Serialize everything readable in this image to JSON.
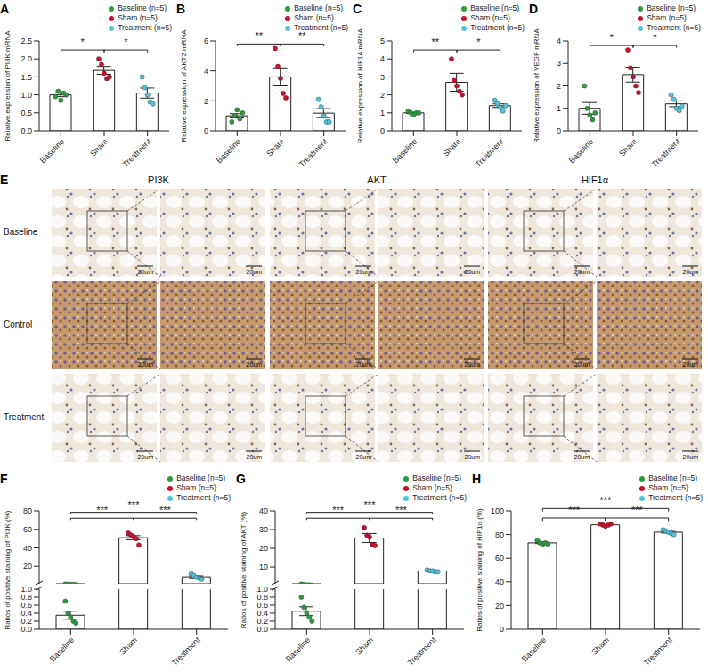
{
  "chart_data": [
    {
      "panel": "A",
      "type": "bar",
      "y_label": "Relative expression of PI3K mRNA",
      "categories": [
        "Baseline",
        "Sham",
        "Treatment"
      ],
      "values": [
        1.0,
        1.68,
        1.05
      ],
      "error": [
        0.05,
        0.11,
        0.14
      ],
      "points": [
        [
          0.95,
          1.1,
          0.85,
          1.05,
          1.0
        ],
        [
          2.0,
          1.85,
          1.6,
          1.45,
          1.5
        ],
        [
          1.5,
          1.2,
          1.0,
          0.8,
          0.75
        ]
      ],
      "colors": [
        "#2e9b3e",
        "#c8102e",
        "#4fc3dc"
      ],
      "legend_labels": [
        "Baseline (n=5)",
        "Sham (n=5)",
        "Treatment (n=5)"
      ],
      "legend": "top right",
      "grid": false,
      "ylim": [
        0,
        2.5
      ],
      "yticks": [
        {
          "value": 0,
          "label": "0.0"
        },
        0.5,
        {
          "value": 1,
          "label": "1.0"
        },
        1.5,
        {
          "value": 2,
          "label": "2.0"
        },
        2.5
      ],
      "comparisons": [
        {
          "pair": [
            "Baseline",
            "Sham"
          ],
          "label": "*"
        },
        {
          "pair": [
            "Sham",
            "Treatment"
          ],
          "label": "*"
        }
      ]
    },
    {
      "panel": "B",
      "type": "bar",
      "y_label": "Relative expression of AKT2 mRNA",
      "categories": [
        "Baseline",
        "Sham",
        "Treatment"
      ],
      "values": [
        1.0,
        3.6,
        1.18
      ],
      "error": [
        0.14,
        0.6,
        0.3
      ],
      "points": [
        [
          0.6,
          1.0,
          1.4,
          0.8,
          1.2
        ],
        [
          5.5,
          4.3,
          3.5,
          2.5,
          2.2
        ],
        [
          2.1,
          1.6,
          1.0,
          0.6,
          0.6
        ]
      ],
      "colors": [
        "#2e9b3e",
        "#c8102e",
        "#4fc3dc"
      ],
      "legend_labels": [
        "Baseline (n=5)",
        "Sham (n=5)",
        "Treatment (n=5)"
      ],
      "legend": "top right",
      "grid": false,
      "ylim": [
        0,
        6
      ],
      "yticks": [
        0,
        2,
        4,
        6
      ],
      "comparisons": [
        {
          "pair": [
            "Baseline",
            "Sham"
          ],
          "label": "**"
        },
        {
          "pair": [
            "Sham",
            "Treatment"
          ],
          "label": "**"
        }
      ]
    },
    {
      "panel": "C",
      "type": "bar",
      "y_label": "Relative expression of HIF1A mRNA",
      "categories": [
        "Baseline",
        "Sham",
        "Treatment"
      ],
      "values": [
        1.0,
        2.7,
        1.4
      ],
      "error": [
        0.03,
        0.5,
        0.1
      ],
      "points": [
        [
          1.1,
          1.0,
          0.9,
          1.0,
          1.0
        ],
        [
          4.0,
          2.8,
          2.5,
          2.2,
          2.0
        ],
        [
          1.7,
          1.5,
          1.3,
          1.1,
          1.4
        ]
      ],
      "colors": [
        "#2e9b3e",
        "#c8102e",
        "#4fc3dc"
      ],
      "legend_labels": [
        "Baseline (n=5)",
        "Sham (n=5)",
        "Treatment (n=5)"
      ],
      "legend": "top right",
      "grid": false,
      "ylim": [
        0,
        5
      ],
      "yticks": [
        0,
        1,
        2,
        3,
        4,
        5
      ],
      "comparisons": [
        {
          "pair": [
            "Baseline",
            "Sham"
          ],
          "label": "**"
        },
        {
          "pair": [
            "Sham",
            "Treatment"
          ],
          "label": "*"
        }
      ]
    },
    {
      "panel": "D",
      "type": "bar",
      "y_label": "Relative expression of VEGF mRNA",
      "categories": [
        "Baseline",
        "Sham",
        "Treatment"
      ],
      "values": [
        1.0,
        2.5,
        1.2
      ],
      "error": [
        0.26,
        0.33,
        0.13
      ],
      "points": [
        [
          2.0,
          1.0,
          0.7,
          0.5,
          0.8
        ],
        [
          3.6,
          2.8,
          2.4,
          2.0,
          1.7
        ],
        [
          1.6,
          1.4,
          1.0,
          0.9,
          1.1
        ]
      ],
      "colors": [
        "#2e9b3e",
        "#c8102e",
        "#4fc3dc"
      ],
      "legend_labels": [
        "Baseline (n=5)",
        "Sham (n=5)",
        "Treatment (n=5)"
      ],
      "legend": "top right",
      "grid": false,
      "ylim": [
        0,
        4
      ],
      "yticks": [
        0,
        1,
        2,
        3,
        4
      ],
      "comparisons": [
        {
          "pair": [
            "Baseline",
            "Sham"
          ],
          "label": "*"
        },
        {
          "pair": [
            "Sham",
            "Treatment"
          ],
          "label": "*"
        }
      ]
    },
    {
      "panel": "F",
      "type": "bar",
      "y_label": "Ratios of positive staining of PI3K (%)",
      "categories": [
        "Baseline",
        "Sham",
        "Treatment"
      ],
      "values": [
        0.35,
        51,
        8.6
      ],
      "error": [
        0.1,
        2.2,
        1.1
      ],
      "points": [
        [
          0.7,
          0.4,
          0.3,
          0.2,
          0.15
        ],
        [
          56,
          54,
          52,
          50,
          43
        ],
        [
          12,
          10,
          8,
          7,
          6
        ]
      ],
      "colors": [
        "#2e9b3e",
        "#c8102e",
        "#4fc3dc"
      ],
      "legend_labels": [
        "Baseline (n=5)",
        "Sham (n=5)",
        "Treatment (n=5)"
      ],
      "legend": "top right",
      "grid": false,
      "y_segments": [
        {
          "ylim": [
            0,
            1
          ],
          "yticks": [
            {
              "value": 0,
              "label": "0.0"
            },
            0.2,
            0.4,
            0.6,
            0.8,
            {
              "value": 1,
              "label": "1.0"
            }
          ]
        },
        {
          "ylim": [
            1,
            80
          ],
          "yticks": [
            20,
            40,
            60,
            80
          ]
        }
      ],
      "comparisons": [
        {
          "pair": [
            "Baseline",
            "Sham"
          ],
          "label": "***"
        },
        {
          "pair": [
            "Sham",
            "Treatment"
          ],
          "label": "***"
        },
        {
          "pair": [
            "Baseline",
            "Treatment"
          ],
          "label": "***"
        }
      ]
    },
    {
      "panel": "G",
      "type": "bar",
      "y_label": "Ratios of positive staining of AKT (%)",
      "categories": [
        "Baseline",
        "Sham",
        "Treatment"
      ],
      "values": [
        0.45,
        25.5,
        7.9
      ],
      "error": [
        0.11,
        2.4,
        0.2
      ],
      "points": [
        [
          0.8,
          0.55,
          0.4,
          0.3,
          0.2
        ],
        [
          31,
          27,
          26,
          22,
          21.5
        ],
        [
          8.5,
          8,
          8,
          7.5,
          7.5
        ]
      ],
      "colors": [
        "#2e9b3e",
        "#c8102e",
        "#4fc3dc"
      ],
      "legend_labels": [
        "Baseline (n=5)",
        "Sham (n=5)",
        "Treatment (n=5)"
      ],
      "legend": "top right",
      "grid": false,
      "y_segments": [
        {
          "ylim": [
            0,
            1
          ],
          "yticks": [
            {
              "value": 0,
              "label": "0.0"
            },
            0.2,
            0.4,
            0.6,
            0.8,
            {
              "value": 1,
              "label": "1.0"
            }
          ]
        },
        {
          "ylim": [
            1,
            40
          ],
          "yticks": [
            10,
            20,
            30,
            40
          ]
        }
      ],
      "comparisons": [
        {
          "pair": [
            "Baseline",
            "Sham"
          ],
          "label": "***"
        },
        {
          "pair": [
            "Sham",
            "Treatment"
          ],
          "label": "***"
        },
        {
          "pair": [
            "Baseline",
            "Treatment"
          ],
          "label": "***"
        }
      ]
    },
    {
      "panel": "H",
      "type": "bar",
      "y_label": "Ratios of positive staining of HIF1α (%)",
      "categories": [
        "Baseline",
        "Sham",
        "Treatment"
      ],
      "values": [
        73,
        88.2,
        82
      ],
      "error": [
        0.6,
        0.4,
        0.7
      ],
      "points": [
        [
          75,
          73,
          72,
          73,
          72
        ],
        [
          89,
          88,
          87,
          88,
          89
        ],
        [
          84,
          83,
          82,
          81,
          80
        ]
      ],
      "colors": [
        "#2e9b3e",
        "#c8102e",
        "#4fc3dc"
      ],
      "legend_labels": [
        "Baseline (n=5)",
        "Sham (n=5)",
        "Treatment (n=5)"
      ],
      "legend": "top right",
      "grid": false,
      "ylim": [
        0,
        100
      ],
      "yticks": [
        0,
        20,
        40,
        60,
        80,
        100
      ],
      "comparisons": [
        {
          "pair": [
            "Baseline",
            "Sham"
          ],
          "label": "***"
        },
        {
          "pair": [
            "Sham",
            "Treatment"
          ],
          "label": "***"
        },
        {
          "pair": [
            "Baseline",
            "Treatment"
          ],
          "label": "***"
        }
      ]
    }
  ],
  "panel_E": {
    "panel": "E",
    "columns": [
      "PI3K",
      "AKT",
      "HIF1α"
    ],
    "rows": [
      "Baseline",
      "Control",
      "Treatment"
    ],
    "scale_bar": "20um"
  }
}
